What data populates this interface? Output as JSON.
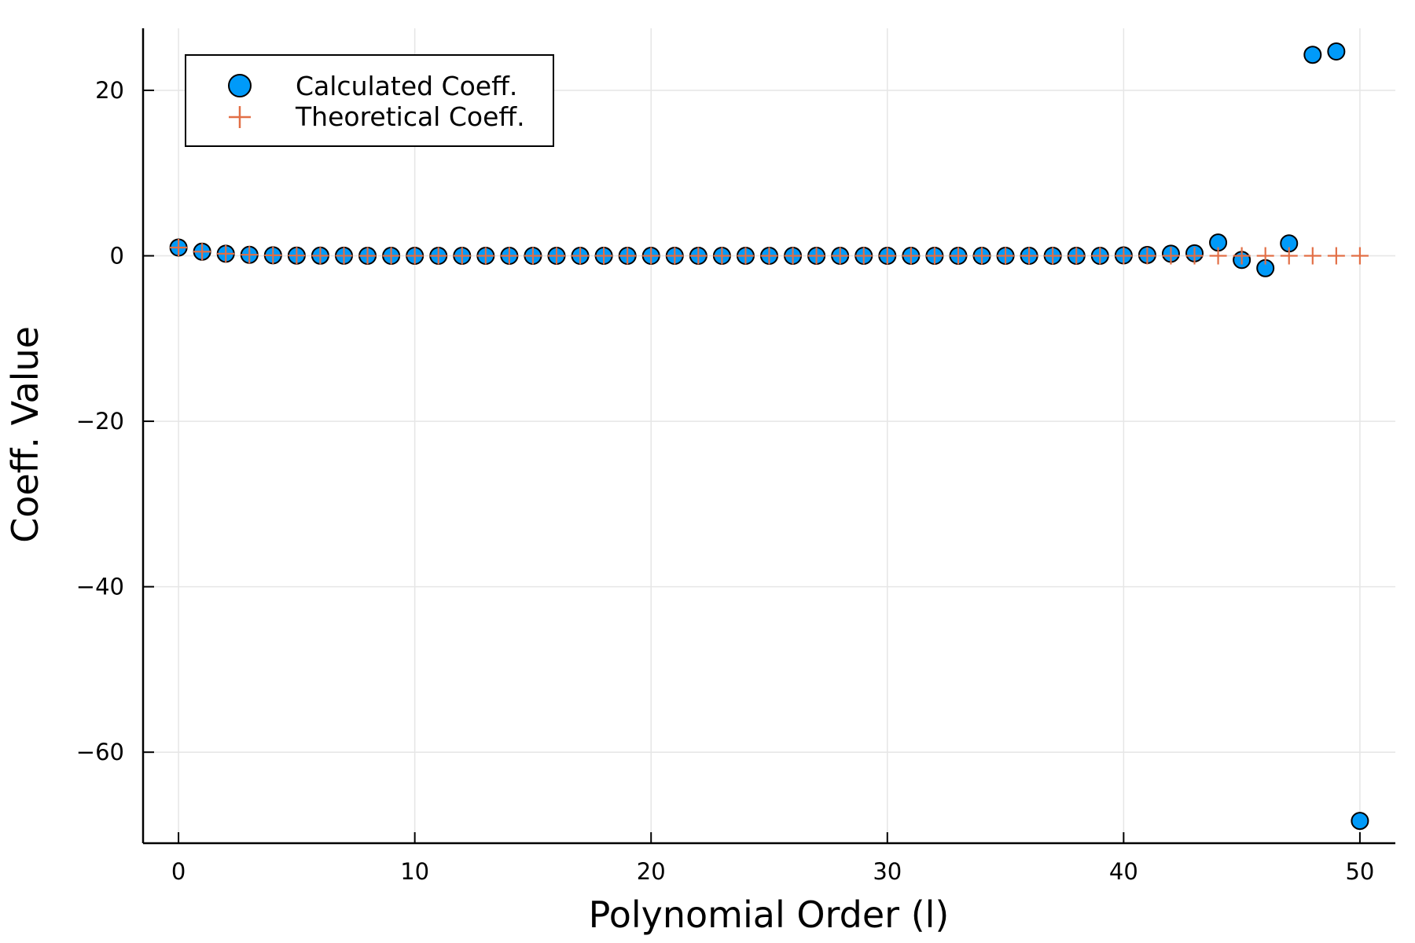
{
  "chart_data": {
    "type": "scatter",
    "title": "",
    "xlabel": "Polynomial Order (l)",
    "ylabel": "Coeff. Value",
    "xlim": [
      -1.5,
      51.5
    ],
    "ylim": [
      -71,
      27.5
    ],
    "xticks": [
      0,
      10,
      20,
      30,
      40,
      50
    ],
    "yticks": [
      20,
      0,
      -20,
      -40,
      -60
    ],
    "xtick_labels": [
      "0",
      "10",
      "20",
      "30",
      "40",
      "50"
    ],
    "ytick_labels": [
      "20",
      "0",
      "−20",
      "−40",
      "−60"
    ],
    "grid": true,
    "legend_position": "top-left",
    "series": [
      {
        "name": "Calculated Coeff.",
        "marker": "circle",
        "color": "#009AF9",
        "x": [
          0,
          1,
          2,
          3,
          4,
          5,
          6,
          7,
          8,
          9,
          10,
          11,
          12,
          13,
          14,
          15,
          16,
          17,
          18,
          19,
          20,
          21,
          22,
          23,
          24,
          25,
          26,
          27,
          28,
          29,
          30,
          31,
          32,
          33,
          34,
          35,
          36,
          37,
          38,
          39,
          40,
          41,
          42,
          43,
          44,
          45,
          46,
          47,
          48,
          49,
          50
        ],
        "y": [
          1.0,
          0.5,
          0.25,
          0.12,
          0.06,
          0.03,
          0.02,
          0.01,
          0,
          0,
          0,
          0,
          0,
          0,
          0,
          0,
          0,
          0,
          0,
          0,
          0,
          0,
          0,
          0,
          0,
          0,
          0,
          0,
          0,
          0,
          0,
          0,
          0,
          0,
          0,
          0,
          0,
          0,
          0,
          0,
          0.05,
          0.1,
          0.25,
          0.3,
          1.6,
          -0.5,
          -1.5,
          1.5,
          24.3,
          24.7,
          -68.3
        ]
      },
      {
        "name": "Theoretical Coeff.",
        "marker": "cross",
        "color": "#E26F46",
        "x": [
          0,
          1,
          2,
          3,
          4,
          5,
          6,
          7,
          8,
          9,
          10,
          11,
          12,
          13,
          14,
          15,
          16,
          17,
          18,
          19,
          20,
          21,
          22,
          23,
          24,
          25,
          26,
          27,
          28,
          29,
          30,
          31,
          32,
          33,
          34,
          35,
          36,
          37,
          38,
          39,
          40,
          41,
          42,
          43,
          44,
          45,
          46,
          47,
          48,
          49,
          50
        ],
        "y": [
          1.0,
          0.5,
          0.25,
          0.125,
          0.0625,
          0.03125,
          0.015625,
          0.0078,
          0.0039,
          0.002,
          0,
          0,
          0,
          0,
          0,
          0,
          0,
          0,
          0,
          0,
          0,
          0,
          0,
          0,
          0,
          0,
          0,
          0,
          0,
          0,
          0,
          0,
          0,
          0,
          0,
          0,
          0,
          0,
          0,
          0,
          0,
          0,
          0,
          0,
          0,
          0,
          0,
          0,
          0,
          0,
          0
        ]
      }
    ]
  }
}
